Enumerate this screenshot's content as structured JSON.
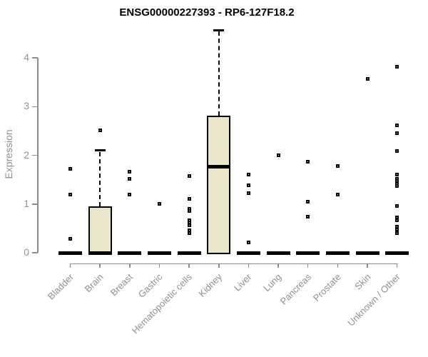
{
  "title": "ENSG00000227393 - RP6-127F18.2",
  "chart_data": {
    "type": "boxplot",
    "title": "ENSG00000227393 - RP6-127F18.2",
    "xlabel": "",
    "ylabel": "Expression",
    "ylim": [
      0,
      4.6
    ],
    "yticks": [
      0,
      1,
      2,
      3,
      4
    ],
    "grid": false,
    "legend": false,
    "colors": {
      "box_fill": "#ebe5cb",
      "box_border": "#000000",
      "median": "#000000",
      "outlier": "#000000",
      "axis": "#8c8c8c",
      "tick_label": "#919191",
      "title": "#000000"
    },
    "categories": [
      "Bladder",
      "Brain",
      "Breast",
      "Gastric",
      "Hematopoietic cells",
      "Kidney",
      "Liver",
      "Lung",
      "Pancreas",
      "Prostate",
      "Skin",
      "Unknown / Other"
    ],
    "series": [
      {
        "name": "Bladder",
        "q1": 0,
        "median": 0,
        "q3": 0,
        "whisker_low": 0,
        "whisker_high": 0,
        "outliers": [
          1.72,
          1.2,
          0.29
        ]
      },
      {
        "name": "Brain",
        "q1": 0,
        "median": 0,
        "q3": 0.95,
        "whisker_low": 0,
        "whisker_high": 2.1,
        "outliers": [
          2.51
        ]
      },
      {
        "name": "Breast",
        "q1": 0,
        "median": 0,
        "q3": 0,
        "whisker_low": 0,
        "whisker_high": 0,
        "outliers": [
          1.66,
          1.52,
          1.2
        ]
      },
      {
        "name": "Gastric",
        "q1": 0,
        "median": 0,
        "q3": 0,
        "whisker_low": 0,
        "whisker_high": 0,
        "outliers": [
          1.0
        ]
      },
      {
        "name": "Hematopoietic cells",
        "q1": 0,
        "median": 0,
        "q3": 0,
        "whisker_low": 0,
        "whisker_high": 0,
        "outliers": [
          1.57,
          1.11,
          0.9,
          0.85,
          0.67,
          0.62,
          0.57,
          0.46,
          0.41
        ]
      },
      {
        "name": "Kidney",
        "q1": 0,
        "median": 1.77,
        "q3": 2.82,
        "whisker_low": 0,
        "whisker_high": 4.57,
        "outliers": []
      },
      {
        "name": "Liver",
        "q1": 0,
        "median": 0,
        "q3": 0,
        "whisker_low": 0,
        "whisker_high": 0,
        "outliers": [
          1.6,
          1.39,
          1.23,
          0.21
        ]
      },
      {
        "name": "Lung",
        "q1": 0,
        "median": 0,
        "q3": 0,
        "whisker_low": 0,
        "whisker_high": 0,
        "outliers": [
          2.0
        ]
      },
      {
        "name": "Pancreas",
        "q1": 0,
        "median": 0,
        "q3": 0,
        "whisker_low": 0,
        "whisker_high": 0,
        "outliers": [
          1.87,
          1.05,
          0.74
        ]
      },
      {
        "name": "Prostate",
        "q1": 0,
        "median": 0,
        "q3": 0,
        "whisker_low": 0,
        "whisker_high": 0,
        "outliers": [
          1.78,
          1.2
        ]
      },
      {
        "name": "Skin",
        "q1": 0,
        "median": 0,
        "q3": 0,
        "whisker_low": 0,
        "whisker_high": 0,
        "outliers": [
          3.57
        ]
      },
      {
        "name": "Unknown / Other",
        "q1": 0,
        "median": 0,
        "q3": 0,
        "whisker_low": 0,
        "whisker_high": 0,
        "outliers": [
          3.82,
          2.62,
          2.45,
          2.09,
          1.6,
          1.52,
          1.47,
          1.42,
          1.37,
          0.96,
          0.72,
          0.66,
          0.53,
          0.47,
          0.41
        ]
      }
    ]
  }
}
